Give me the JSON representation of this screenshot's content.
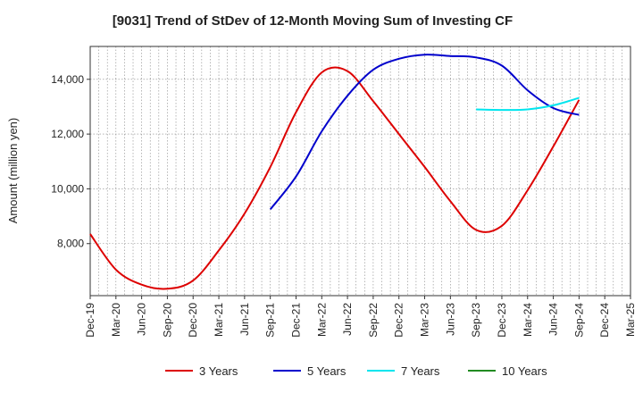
{
  "chart_data": {
    "type": "line",
    "title": "[9031]  Trend of StDev of 12-Month Moving Sum of Investing CF",
    "ylabel": "Amount (million yen)",
    "xlabel": "",
    "ylim": [
      6100,
      15200
    ],
    "yticks": [
      8000,
      10000,
      12000,
      14000
    ],
    "ytick_labels": [
      "8,000",
      "10,000",
      "12,000",
      "14,000"
    ],
    "grid": true,
    "legend_position": "bottom",
    "categories": [
      "Dec-19",
      "Mar-20",
      "Jun-20",
      "Sep-20",
      "Dec-20",
      "Mar-21",
      "Jun-21",
      "Sep-21",
      "Dec-21",
      "Mar-22",
      "Jun-22",
      "Sep-22",
      "Dec-22",
      "Mar-23",
      "Jun-23",
      "Sep-23",
      "Dec-23",
      "Mar-24",
      "Jun-24",
      "Sep-24",
      "Dec-24",
      "Mar-25"
    ],
    "series": [
      {
        "name": "3 Years",
        "color": "#dd0000",
        "values": [
          8350,
          7050,
          6500,
          6350,
          6650,
          7750,
          9100,
          10800,
          12800,
          14250,
          14300,
          13200,
          12000,
          10800,
          9550,
          8500,
          8650,
          9950,
          11550,
          13250,
          null,
          null
        ]
      },
      {
        "name": "5 Years",
        "color": "#0000cc",
        "values": [
          null,
          null,
          null,
          null,
          null,
          null,
          null,
          9250,
          10450,
          12100,
          13400,
          14350,
          14750,
          14900,
          14850,
          14800,
          14500,
          13600,
          12950,
          12700,
          null,
          null
        ]
      },
      {
        "name": "7 Years",
        "color": "#00e5ee",
        "values": [
          null,
          null,
          null,
          null,
          null,
          null,
          null,
          null,
          null,
          null,
          null,
          null,
          null,
          null,
          null,
          12900,
          12880,
          12900,
          13050,
          13320,
          null,
          null
        ]
      },
      {
        "name": "10 Years",
        "color": "#228b22",
        "values": [
          null,
          null,
          null,
          null,
          null,
          null,
          null,
          null,
          null,
          null,
          null,
          null,
          null,
          null,
          null,
          null,
          null,
          null,
          null,
          null,
          null,
          null
        ]
      }
    ]
  }
}
